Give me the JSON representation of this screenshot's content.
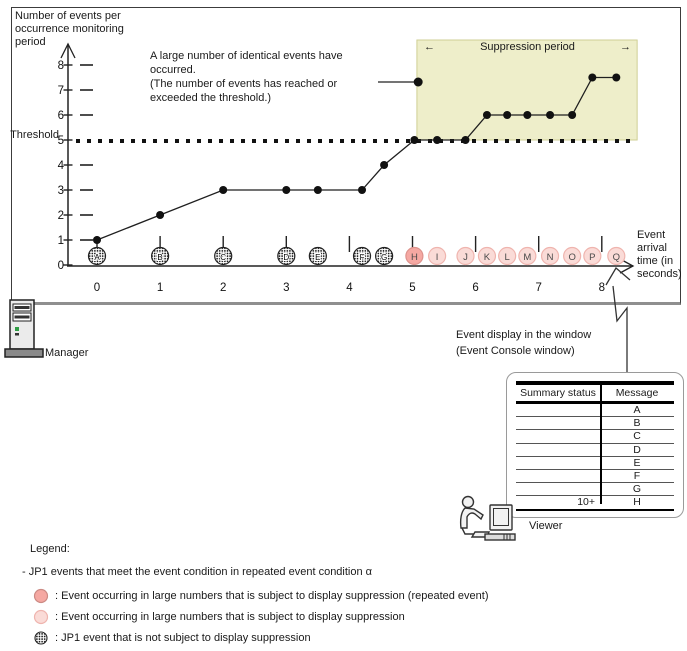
{
  "chart": {
    "y_axis_title_lines": [
      "Number of events per",
      "occurrence monitoring",
      "period"
    ],
    "threshold_label": "Threshold",
    "suppression_arrow_left": "←",
    "suppression_label": "Suppression period",
    "suppression_arrow_right": "→",
    "annotation_lines": [
      "A large number of identical events have",
      "occurred.",
      "(The number of events has reached or",
      "exceeded the threshold.)"
    ],
    "x_axis_label_lines": [
      "Event",
      "arrival",
      "time (in",
      "seconds)"
    ]
  },
  "chart_data": {
    "type": "line",
    "title": "",
    "xlabel": "Event arrival time (in seconds)",
    "ylabel": "Number of events per occurrence monitoring period",
    "xlim": [
      0,
      8
    ],
    "ylim": [
      0,
      8
    ],
    "x_ticks": [
      0,
      1,
      2,
      3,
      4,
      5,
      6,
      7,
      8
    ],
    "y_ticks": [
      0,
      1,
      2,
      3,
      4,
      5,
      6,
      7,
      8
    ],
    "threshold": 5,
    "grid": false,
    "suppression_region": {
      "x_start": 5.07,
      "x_end": 8.56,
      "y_bottom": 5,
      "y_top": 9
    },
    "annotation_point": {
      "x": 5.09,
      "y": 7.32
    },
    "series": [
      {
        "name": "Number of events",
        "x": [
          0,
          1,
          2,
          3,
          3.5,
          4.2,
          4.55,
          5.03,
          5.39,
          5.84,
          6.18,
          6.5,
          6.82,
          7.18,
          7.53,
          7.85,
          8.23
        ],
        "y": [
          1,
          2,
          3,
          3,
          3,
          3,
          4,
          5,
          5,
          5,
          6,
          6,
          6,
          6,
          6,
          7.5,
          7.5
        ]
      }
    ],
    "events": [
      {
        "label": "A",
        "x": 0,
        "count": 1,
        "type": "normal"
      },
      {
        "label": "B",
        "x": 1,
        "count": 2,
        "type": "normal"
      },
      {
        "label": "C",
        "x": 2,
        "count": 3,
        "type": "normal"
      },
      {
        "label": "D",
        "x": 3,
        "count": 3,
        "type": "normal"
      },
      {
        "label": "E",
        "x": 3.5,
        "count": 3,
        "type": "normal"
      },
      {
        "label": "F",
        "x": 4.2,
        "count": 3,
        "type": "normal"
      },
      {
        "label": "G",
        "x": 4.55,
        "count": 4,
        "type": "normal"
      },
      {
        "label": "H",
        "x": 5.03,
        "count": 5,
        "type": "repeated"
      },
      {
        "label": "I",
        "x": 5.39,
        "count": 5,
        "type": "suppressed"
      },
      {
        "label": "J",
        "x": 5.84,
        "count": 5,
        "type": "suppressed"
      },
      {
        "label": "K",
        "x": 6.18,
        "count": 6,
        "type": "suppressed"
      },
      {
        "label": "L",
        "x": 6.5,
        "count": 6,
        "type": "suppressed"
      },
      {
        "label": "M",
        "x": 6.82,
        "count": 6,
        "type": "suppressed"
      },
      {
        "label": "N",
        "x": 7.18,
        "count": 6,
        "type": "suppressed"
      },
      {
        "label": "O",
        "x": 7.53,
        "count": 6,
        "type": "suppressed"
      },
      {
        "label": "P",
        "x": 7.85,
        "count": 7.5,
        "type": "suppressed"
      },
      {
        "label": "Q",
        "x": 8.23,
        "count": 7.5,
        "type": "suppressed"
      }
    ]
  },
  "manager_label": "Manager",
  "viewer_label": "Viewer",
  "console": {
    "heading_lines": [
      "Event display in the window",
      "(Event Console window)"
    ],
    "table": {
      "columns": [
        "Summary status",
        "Message"
      ],
      "rows": [
        [
          "",
          "A"
        ],
        [
          "",
          "B"
        ],
        [
          "",
          "C"
        ],
        [
          "",
          "D"
        ],
        [
          "",
          "E"
        ],
        [
          "",
          "F"
        ],
        [
          "",
          "G"
        ],
        [
          "10+",
          "H"
        ]
      ]
    }
  },
  "legend": {
    "title": "Legend:",
    "condition": "- JP1 events that meet the event condition in repeated event condition α",
    "items": [
      {
        "type": "repeated",
        "text": ": Event occurring in large numbers that is subject to display suppression (repeated event)"
      },
      {
        "type": "suppressed",
        "text": ": Event occurring in large numbers that is subject to display suppression"
      },
      {
        "type": "normal",
        "text": ": JP1 event that is not subject to display suppression"
      }
    ]
  },
  "colors": {
    "suppression_fill": "#eeeeca",
    "suppression_border": "#cfcf94",
    "repeated_fill": "#f5a8a2",
    "repeated_border": "#dd928c",
    "suppressed_fill": "#fadbd7",
    "suppressed_border": "#efb4ae",
    "line": "#1f1f1f"
  }
}
